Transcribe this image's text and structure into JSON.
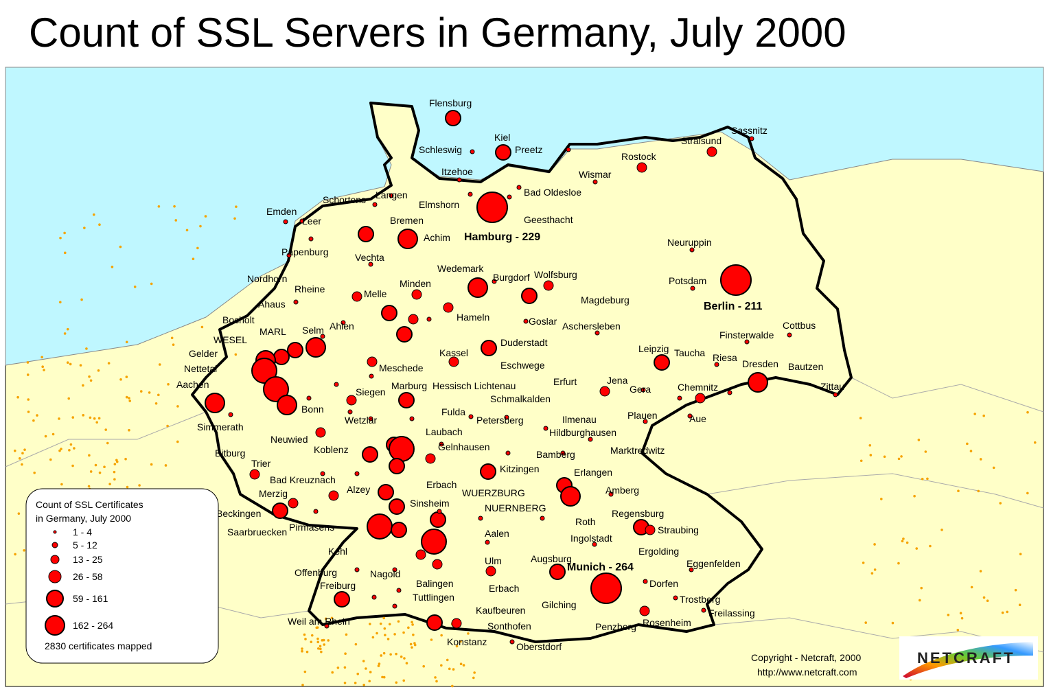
{
  "title": "Count of SSL Servers in Germany, July 2000",
  "map": {
    "cities": [
      "Flensburg",
      "Kiel",
      "Schleswig",
      "Preetz",
      "Itzehoe",
      "Rostock",
      "Stralsund",
      "Sassnitz",
      "Wismar",
      "Langen",
      "Schortens",
      "Elmshorn",
      "Bad Oldesloe",
      "Emden",
      "Leer",
      "Bremen",
      "Geesthacht",
      "Achim",
      "Hamburg - 229",
      "Neuruppin",
      "Papenburg",
      "Vechta",
      "Wedemark",
      "Burgdorf",
      "Wolfsburg",
      "Nordhorn",
      "Minden",
      "Potsdam",
      "Rheine",
      "Melle",
      "Magdeburg",
      "Ahaus",
      "Berlin - 211",
      "Hameln",
      "Goslar",
      "Bocholt",
      "Ahlen",
      "Aschersleben",
      "Cottbus",
      "MARL",
      "Selm",
      "Finsterwalde",
      "WESEL",
      "Duderstadt",
      "Gelder",
      "Kassel",
      "Leipzig",
      "Taucha",
      "Riesa",
      "Dresden",
      "Bautzen",
      "Nettetal",
      "Meschede",
      "Eschwege",
      "Aachen",
      "Hessisch Lichtenau",
      "Marburg",
      "Erfurt",
      "Jena",
      "Gera",
      "Chemnitz",
      "Zittau",
      "Siegen",
      "Schmalkalden",
      "Bonn",
      "Fulda",
      "Plauen",
      "Aue",
      "Wetzlar",
      "Petersberg",
      "Ilmenau",
      "Simmerath",
      "Laubach",
      "Hildburghausen",
      "Neuwied",
      "Gelnhausen",
      "Koblenz",
      "Marktredwitz",
      "Bitburg",
      "Bamberg",
      "Trier",
      "Kitzingen",
      "Bad Kreuznach",
      "Erlangen",
      "Erbach",
      "Alzey",
      "Amberg",
      "WUERZBURG",
      "Merzig",
      "Sinsheim",
      "NUERNBERG",
      "Beckingen",
      "Regensburg",
      "Roth",
      "Pirmasens",
      "Saarbruecken",
      "Straubing",
      "Aalen",
      "Ingolstadt",
      "Kehl",
      "Ergolding",
      "Augsburg",
      "Ulm",
      "Munich - 264",
      "Eggenfelden",
      "Offenburg",
      "Nagold",
      "Balingen",
      "Dorfen",
      "Freiburg",
      "Erbach",
      "Tuttlingen",
      "Trostberg",
      "Gilching",
      "Kaufbeuren",
      "Freilassing",
      "Weil am Rhein",
      "Rosenheim",
      "Sonthofen",
      "Penzberg",
      "Konstanz",
      "Oberstdorf"
    ]
  },
  "legend": {
    "title": [
      "Count of SSL Certificates",
      "in Germany, July 2000"
    ],
    "classes": [
      "1 - 4",
      "5 - 12",
      "13 - 25",
      "26 - 58",
      "59 - 161",
      "162 - 264"
    ],
    "note": "2830 certificates mapped"
  },
  "copyright": "Copyright - Netcraft, 2000",
  "url": "http://www.netcraft.com",
  "logo": "NETCRAFT"
}
